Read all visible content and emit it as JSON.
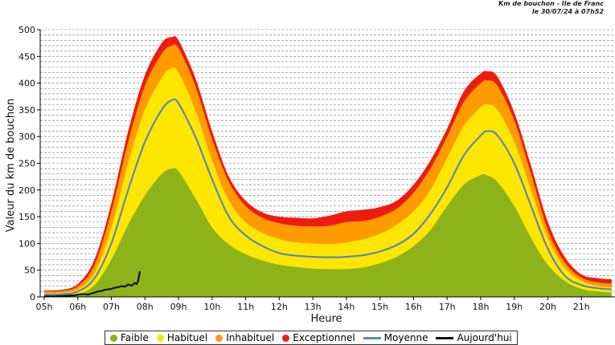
{
  "header": {
    "line1": "Km de bouchon - Ile de Franc",
    "line2": "le 30/07/24 à 07h52"
  },
  "chart_data": {
    "type": "area",
    "title": "Km de bouchon - Ile de France",
    "xlabel": "Heure",
    "ylabel": "Valeur du  km de bouchon",
    "ylim": [
      0,
      500
    ],
    "xlim": [
      5,
      22
    ],
    "yticks": [
      0,
      50,
      100,
      150,
      200,
      250,
      300,
      350,
      400,
      450,
      500
    ],
    "xticks": [
      5,
      6,
      7,
      8,
      9,
      10,
      11,
      12,
      13,
      14,
      15,
      16,
      17,
      18,
      19,
      20,
      21
    ],
    "xtick_labels": [
      "05h",
      "06h",
      "07h",
      "08h",
      "09h",
      "10h",
      "11h",
      "12h",
      "13h",
      "14h",
      "15h",
      "16h",
      "17h",
      "18h",
      "19h",
      "20h",
      "21h"
    ],
    "grid": true,
    "legend_position": "bottom",
    "x": [
      5,
      5.5,
      6,
      6.5,
      7,
      7.5,
      8,
      8.5,
      8.8,
      9,
      9.5,
      10,
      10.5,
      11,
      11.5,
      12,
      12.5,
      13,
      13.5,
      14,
      14.5,
      15,
      15.5,
      16,
      16.5,
      17,
      17.5,
      18,
      18.2,
      18.5,
      19,
      19.5,
      20,
      20.5,
      21,
      21.5,
      21.9
    ],
    "series": [
      {
        "name": "Faible",
        "role": "band",
        "color": "#8db31a",
        "values": [
          2,
          2,
          5,
          22,
          70,
          135,
          190,
          230,
          240,
          235,
          185,
          130,
          98,
          80,
          68,
          60,
          56,
          53,
          52,
          52,
          55,
          63,
          75,
          95,
          125,
          170,
          210,
          228,
          227,
          215,
          170,
          110,
          60,
          30,
          15,
          10,
          8
        ]
      },
      {
        "name": "Habituel",
        "role": "band",
        "color": "#ffe600",
        "values": [
          7,
          8,
          14,
          45,
          130,
          250,
          350,
          410,
          428,
          420,
          350,
          255,
          180,
          140,
          120,
          108,
          102,
          100,
          99,
          102,
          108,
          118,
          135,
          160,
          200,
          260,
          320,
          355,
          360,
          350,
          290,
          200,
          110,
          55,
          30,
          20,
          18
        ]
      },
      {
        "name": "Inhabituel",
        "role": "band",
        "color": "#ff9a00",
        "values": [
          10,
          11,
          20,
          60,
          160,
          290,
          395,
          455,
          470,
          465,
          395,
          295,
          215,
          170,
          148,
          138,
          133,
          132,
          133,
          140,
          142,
          150,
          165,
          195,
          240,
          300,
          365,
          400,
          405,
          395,
          330,
          230,
          125,
          65,
          36,
          27,
          25
        ]
      },
      {
        "name": "Exceptionnel",
        "role": "band",
        "color": "#ee1c0f",
        "values": [
          12,
          13,
          24,
          70,
          175,
          310,
          415,
          475,
          486,
          480,
          410,
          310,
          225,
          180,
          158,
          150,
          148,
          147,
          152,
          160,
          163,
          168,
          180,
          210,
          255,
          315,
          385,
          418,
          422,
          412,
          345,
          245,
          140,
          75,
          42,
          35,
          33
        ]
      },
      {
        "name": "Moyenne",
        "role": "line",
        "color": "#5a8ab2",
        "values": [
          4,
          5,
          10,
          35,
          100,
          200,
          290,
          350,
          368,
          362,
          300,
          220,
          150,
          115,
          95,
          82,
          77,
          75,
          74,
          75,
          78,
          85,
          97,
          118,
          155,
          205,
          265,
          302,
          310,
          302,
          250,
          170,
          90,
          40,
          22,
          16,
          14
        ]
      },
      {
        "name": "Aujourd'hui",
        "role": "line",
        "color": "#111111",
        "x": [
          5,
          5.3,
          5.6,
          5.9,
          6.0,
          6.1,
          6.2,
          6.3,
          6.4,
          6.5,
          6.6,
          6.7,
          6.8,
          6.9,
          7.0,
          7.1,
          7.2,
          7.3,
          7.4,
          7.5,
          7.6,
          7.7,
          7.75,
          7.8,
          7.85
        ],
        "values": [
          1,
          1,
          2,
          3,
          4,
          5,
          5,
          4,
          6,
          8,
          10,
          11,
          13,
          14,
          15,
          17,
          18,
          20,
          19,
          23,
          21,
          26,
          24,
          30,
          48
        ]
      }
    ]
  },
  "legend": {
    "items": [
      {
        "label": "Faible",
        "kind": "dot",
        "color": "#8db31a"
      },
      {
        "label": "Habituel",
        "kind": "dot",
        "color": "#ffe600"
      },
      {
        "label": "Inhabituel",
        "kind": "dot",
        "color": "#ff9a00"
      },
      {
        "label": "Exceptionnel",
        "kind": "dot",
        "color": "#ee1c0f"
      },
      {
        "label": "Moyenne",
        "kind": "line",
        "color": "#5a8ab2"
      },
      {
        "label": "Aujourd'hui",
        "kind": "line",
        "color": "#111111"
      }
    ]
  }
}
